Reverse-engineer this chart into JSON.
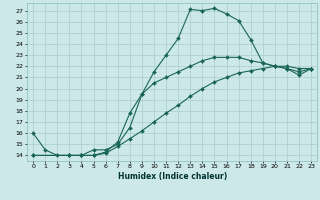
{
  "xlabel": "Humidex (Indice chaleur)",
  "bg_color": "#cce8e8",
  "grid_color": "#aacccc",
  "line_color": "#1a6655",
  "xlim": [
    -0.5,
    23.5
  ],
  "ylim": [
    13.5,
    27.7
  ],
  "xticks": [
    0,
    1,
    2,
    3,
    4,
    5,
    6,
    7,
    8,
    9,
    10,
    11,
    12,
    13,
    14,
    15,
    16,
    17,
    18,
    19,
    20,
    21,
    22,
    23
  ],
  "yticks": [
    14,
    15,
    16,
    17,
    18,
    19,
    20,
    21,
    22,
    23,
    24,
    25,
    26,
    27
  ],
  "line1_x": [
    0,
    1,
    2,
    3,
    4,
    5,
    6,
    7,
    8,
    9,
    10,
    11,
    12,
    13,
    14,
    15,
    16,
    17,
    18,
    19,
    20,
    21,
    22,
    23
  ],
  "line1_y": [
    16.0,
    14.5,
    14.0,
    14.0,
    14.0,
    14.5,
    14.5,
    15.0,
    16.5,
    19.5,
    21.5,
    23.0,
    24.5,
    27.1,
    27.0,
    27.2,
    26.7,
    26.1,
    24.4,
    22.3,
    22.0,
    21.8,
    21.2,
    21.8
  ],
  "line2_x": [
    0,
    3,
    4,
    5,
    6,
    7,
    8,
    9,
    10,
    11,
    12,
    13,
    14,
    15,
    16,
    17,
    18,
    19,
    20,
    21,
    22,
    23
  ],
  "line2_y": [
    14.0,
    14.0,
    14.0,
    14.0,
    14.3,
    15.2,
    17.8,
    19.5,
    20.5,
    21.0,
    21.5,
    22.0,
    22.5,
    22.8,
    22.8,
    22.8,
    22.5,
    22.3,
    22.0,
    21.8,
    21.5,
    21.8
  ],
  "line3_x": [
    0,
    3,
    4,
    5,
    6,
    7,
    8,
    9,
    10,
    11,
    12,
    13,
    14,
    15,
    16,
    17,
    18,
    19,
    20,
    21,
    22,
    23
  ],
  "line3_y": [
    14.0,
    14.0,
    14.0,
    14.0,
    14.2,
    14.8,
    15.5,
    16.2,
    17.0,
    17.8,
    18.5,
    19.3,
    20.0,
    20.6,
    21.0,
    21.4,
    21.6,
    21.8,
    22.0,
    22.0,
    21.8,
    21.8
  ]
}
